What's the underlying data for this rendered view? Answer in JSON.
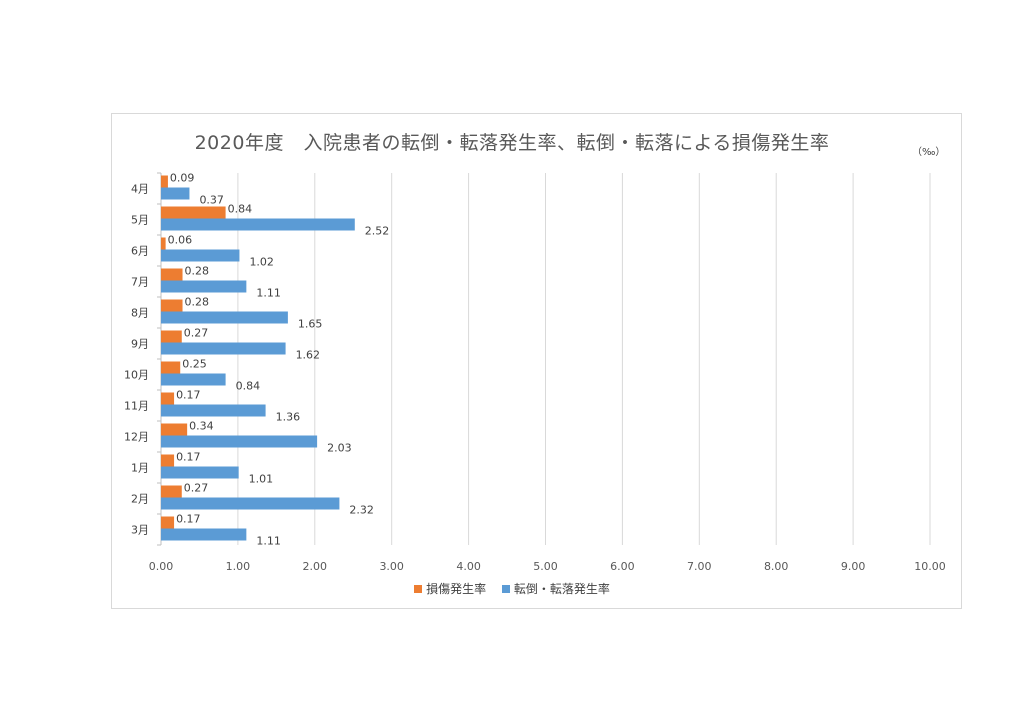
{
  "chart_data": {
    "type": "bar",
    "orientation": "horizontal",
    "title": "2020年度　入院患者の転倒・転落発生率、転倒・転落による損傷発生率",
    "unit": "（‰）",
    "categories": [
      "4月",
      "5月",
      "6月",
      "7月",
      "8月",
      "9月",
      "10月",
      "11月",
      "12月",
      "1月",
      "2月",
      "3月"
    ],
    "series": [
      {
        "name": "損傷発生率",
        "color": "#ed7d31",
        "values": [
          0.09,
          0.84,
          0.06,
          0.28,
          0.28,
          0.27,
          0.25,
          0.17,
          0.34,
          0.17,
          0.27,
          0.17
        ],
        "labels": [
          "0.09",
          "0.84",
          "0.06",
          "0.28",
          "0.28",
          "0.27",
          "0.25",
          "0.17",
          "0.34",
          "0.17",
          "0.27",
          "0.17"
        ]
      },
      {
        "name": "転倒・転落発生率",
        "color": "#5b9bd5",
        "values": [
          0.37,
          2.52,
          1.02,
          1.11,
          1.65,
          1.62,
          0.84,
          1.36,
          2.03,
          1.01,
          2.32,
          1.11
        ],
        "labels": [
          "0.37",
          "2.52",
          "1.02",
          "1.11",
          "1.65",
          "1.62",
          "0.84",
          "1.36",
          "2.03",
          "1.01",
          "2.32",
          "1.11"
        ]
      }
    ],
    "xlim": [
      0,
      10
    ],
    "xticks": [
      "0.00",
      "1.00",
      "2.00",
      "3.00",
      "4.00",
      "5.00",
      "6.00",
      "7.00",
      "8.00",
      "9.00",
      "10.00"
    ],
    "grid": true,
    "legend_position": "bottom"
  }
}
